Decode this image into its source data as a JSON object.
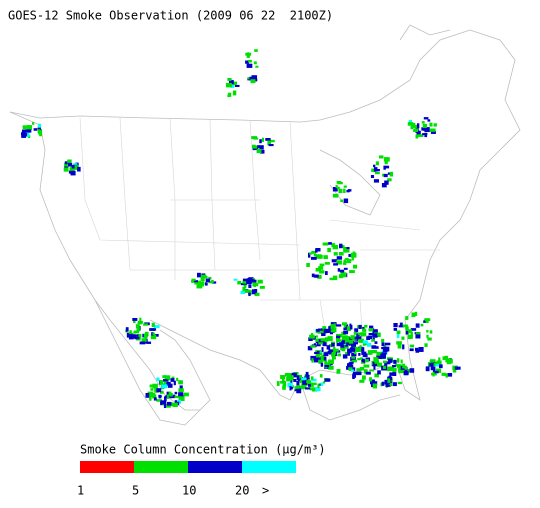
{
  "title": "GOES-12 Smoke Observation (2009 06 22  2100Z)",
  "legend": {
    "title": "Smoke Column Concentration (μg/m³)",
    "colors": [
      "#ff0000",
      "#00e000",
      "#0000c8",
      "#00ffff"
    ],
    "labels": [
      "1",
      "5",
      "10",
      "20",
      ">"
    ]
  }
}
